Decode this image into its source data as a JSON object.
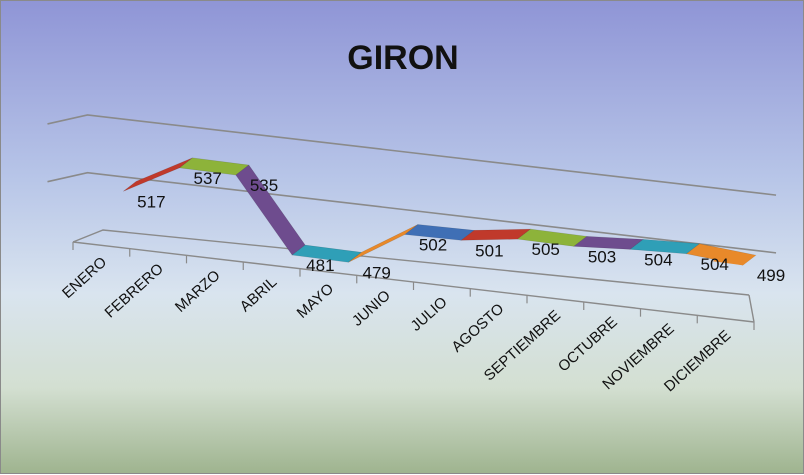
{
  "chart_data": {
    "type": "line",
    "title": "GIRON",
    "categories": [
      "ENERO",
      "FEBRERO",
      "MARZO",
      "ABRIL",
      "MAYO",
      "JUNIO",
      "JULIO",
      "AGOSTO",
      "SEPTIEMBRE",
      "OCTUBRE",
      "NOVIEMBRE",
      "DICIEMBRE"
    ],
    "values": [
      517,
      537,
      535,
      481,
      479,
      502,
      501,
      505,
      503,
      504,
      504,
      499
    ],
    "segment_colors": [
      "#c0392b",
      "#8db33a",
      "#6e4c8e",
      "#2f9fb7",
      "#e8892a",
      "#3f6fb5",
      "#c0392b",
      "#8db33a",
      "#6e4c8e",
      "#2f9fb7",
      "#e8892a",
      "#e8892a"
    ],
    "ylim": [
      470,
      545
    ],
    "grid": true,
    "legend": "none"
  }
}
